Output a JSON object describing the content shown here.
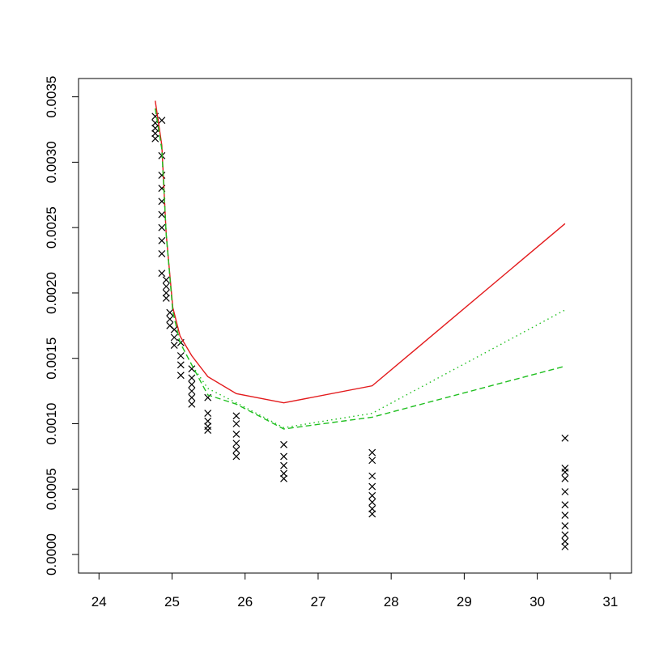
{
  "chart_data": {
    "type": "line",
    "xlim": [
      23.72,
      31.29
    ],
    "ylim": [
      -0.000142,
      0.00364
    ],
    "xticks": [
      24,
      25,
      26,
      27,
      28,
      29,
      30,
      31
    ],
    "yticks": [
      {
        "value": 0,
        "label": "0.0000"
      },
      {
        "value": 0.0005,
        "label": "0.0005"
      },
      {
        "value": 0.001,
        "label": "0.0010"
      },
      {
        "value": 0.0015,
        "label": "0.0015"
      },
      {
        "value": 0.002,
        "label": "0.0020"
      },
      {
        "value": 0.0025,
        "label": "0.0025"
      },
      {
        "value": 0.003,
        "label": "0.0030"
      },
      {
        "value": 0.0035,
        "label": "0.0035"
      }
    ],
    "x": [
      24.77,
      24.86,
      24.92,
      25.01,
      25.11,
      25.27,
      25.49,
      25.88,
      26.53,
      27.74,
      30.38
    ],
    "series": [
      {
        "color": "#e31a1c",
        "dash": "solid",
        "values": [
          0.00347,
          0.00313,
          0.00245,
          0.00189,
          0.00167,
          0.00152,
          0.00136,
          0.00123,
          0.00116,
          0.00129,
          0.00253
        ]
      },
      {
        "color": "#1fbf1f",
        "dash": "dotted",
        "values": [
          0.00341,
          0.0031,
          0.00245,
          0.00186,
          0.00162,
          0.00145,
          0.00127,
          0.00116,
          0.00097,
          0.00108,
          0.00187
        ]
      },
      {
        "color": "#1fbf1f",
        "dash": "dashed",
        "values": [
          0.00341,
          0.0031,
          0.00245,
          0.00186,
          0.00162,
          0.00145,
          0.00122,
          0.00115,
          0.00096,
          0.00105,
          0.00144
        ]
      }
    ],
    "points": {
      "color": "#000000",
      "x": [
        24.77,
        24.77,
        24.77,
        24.77,
        24.77,
        24.86,
        24.86,
        24.86,
        24.86,
        24.86,
        24.86,
        24.86,
        24.86,
        24.86,
        24.86,
        24.92,
        24.92,
        24.92,
        24.92,
        24.97,
        24.97,
        24.97,
        25.03,
        25.03,
        25.03,
        25.12,
        25.12,
        25.12,
        25.12,
        25.27,
        25.27,
        25.27,
        25.27,
        25.27,
        25.27,
        25.49,
        25.49,
        25.49,
        25.49,
        25.49,
        25.88,
        25.88,
        25.88,
        25.88,
        25.88,
        25.88,
        26.53,
        26.53,
        26.53,
        26.53,
        26.53,
        27.74,
        27.74,
        27.74,
        27.74,
        27.74,
        27.74,
        27.74,
        27.74,
        30.38,
        30.38,
        30.38,
        30.38,
        30.38,
        30.38,
        30.38,
        30.38,
        30.38,
        30.38,
        30.38
      ],
      "y": [
        0.00335,
        0.0033,
        0.00326,
        0.00322,
        0.00318,
        0.00332,
        0.00305,
        0.0029,
        0.0028,
        0.0027,
        0.0026,
        0.0025,
        0.0024,
        0.0023,
        0.00215,
        0.0021,
        0.00205,
        0.002,
        0.00196,
        0.00185,
        0.0018,
        0.00175,
        0.00172,
        0.00166,
        0.0016,
        0.00162,
        0.00152,
        0.00145,
        0.00137,
        0.00142,
        0.00135,
        0.0013,
        0.00125,
        0.0012,
        0.00115,
        0.0012,
        0.00108,
        0.00102,
        0.00098,
        0.00095,
        0.00106,
        0.001,
        0.00092,
        0.00085,
        0.0008,
        0.00075,
        0.00084,
        0.00075,
        0.00068,
        0.00062,
        0.00058,
        0.00078,
        0.00072,
        0.0006,
        0.00052,
        0.00045,
        0.0004,
        0.00035,
        0.00031,
        0.00089,
        0.00066,
        0.00063,
        0.00058,
        0.00048,
        0.00038,
        0.0003,
        0.00022,
        0.00015,
        0.0001,
        6e-05
      ]
    }
  }
}
